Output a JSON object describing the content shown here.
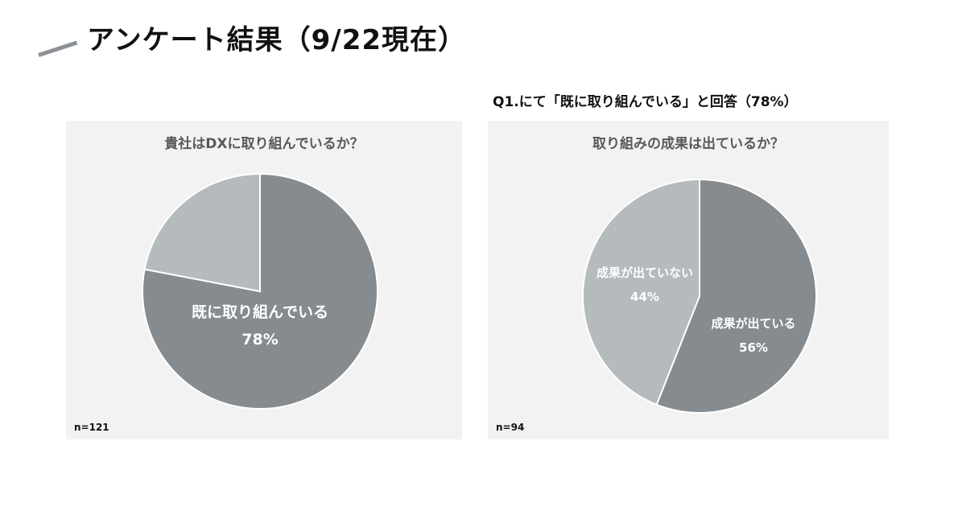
{
  "header": {
    "title": "アンケート結果（9/22現在）",
    "q_note": "Q1.にて「既に取り組んでいる」と回答（78%）"
  },
  "colors": {
    "dark_slice": "#858b8f",
    "light_slice": "#b5babd",
    "panel_bg": "#f2f2f2",
    "label_text": "#ffffff"
  },
  "chart_data": [
    {
      "type": "pie",
      "title": "貴社はDXに取り組んでいるか？",
      "n_label": "n=121",
      "slices": [
        {
          "label": "既に取り組んでいる",
          "value": 78,
          "value_label": "78%",
          "color": "#858b8f",
          "show_label": true
        },
        {
          "label": "",
          "value": 22,
          "value_label": "",
          "color": "#b5babd",
          "show_label": false
        }
      ]
    },
    {
      "type": "pie",
      "title": "取り組みの成果は出ているか？",
      "n_label": "n=94",
      "slices": [
        {
          "label": "成果が出ている",
          "value": 56,
          "value_label": "56%",
          "color": "#858b8f",
          "show_label": true
        },
        {
          "label": "成果が出ていない",
          "value": 44,
          "value_label": "44%",
          "color": "#b5babd",
          "show_label": true
        }
      ]
    }
  ]
}
